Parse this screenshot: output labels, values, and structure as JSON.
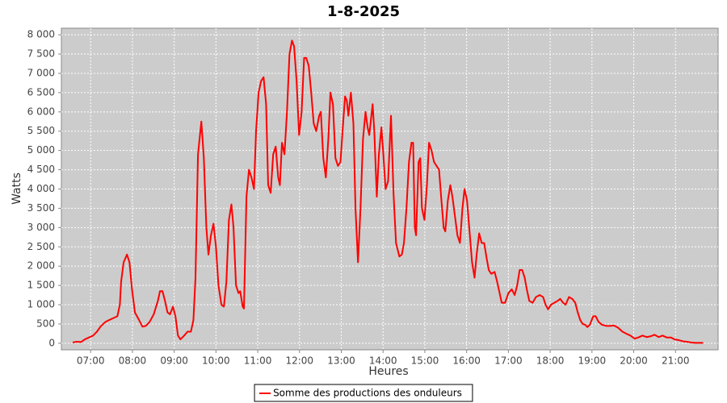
{
  "chart_data": {
    "type": "line",
    "title": "1-8-2025",
    "x_label": "Heures",
    "y_label": "Watts",
    "x": [
      6.57,
      6.67,
      6.77,
      6.86,
      6.96,
      7.06,
      7.15,
      7.25,
      7.35,
      7.44,
      7.54,
      7.64,
      7.7,
      7.73,
      7.79,
      7.87,
      7.93,
      7.99,
      8.06,
      8.16,
      8.24,
      8.32,
      8.41,
      8.51,
      8.61,
      8.66,
      8.72,
      8.78,
      8.84,
      8.9,
      8.97,
      9.03,
      9.09,
      9.15,
      9.24,
      9.32,
      9.4,
      9.46,
      9.51,
      9.57,
      9.65,
      9.71,
      9.77,
      9.82,
      9.88,
      9.94,
      10.0,
      10.06,
      10.13,
      10.19,
      10.25,
      10.31,
      10.37,
      10.42,
      10.48,
      10.54,
      10.58,
      10.64,
      10.67,
      10.73,
      10.79,
      10.85,
      10.91,
      10.96,
      11.02,
      11.08,
      11.14,
      11.2,
      11.25,
      11.31,
      11.37,
      11.43,
      11.49,
      11.53,
      11.58,
      11.64,
      11.7,
      11.76,
      11.82,
      11.87,
      11.93,
      11.99,
      12.05,
      12.11,
      12.16,
      12.22,
      12.28,
      12.34,
      12.4,
      12.47,
      12.51,
      12.57,
      12.63,
      12.69,
      12.74,
      12.8,
      12.86,
      12.92,
      12.98,
      13.03,
      13.09,
      13.13,
      13.17,
      13.23,
      13.29,
      13.34,
      13.4,
      13.46,
      13.52,
      13.58,
      13.63,
      13.67,
      13.75,
      13.79,
      13.85,
      13.9,
      13.96,
      14.0,
      14.06,
      14.12,
      14.19,
      14.25,
      14.31,
      14.39,
      14.45,
      14.5,
      14.56,
      14.62,
      14.68,
      14.72,
      14.76,
      14.79,
      14.85,
      14.89,
      14.93,
      14.99,
      15.05,
      15.1,
      15.16,
      15.22,
      15.28,
      15.34,
      15.39,
      15.45,
      15.49,
      15.55,
      15.61,
      15.66,
      15.72,
      15.78,
      15.84,
      15.9,
      15.95,
      16.01,
      16.07,
      16.13,
      16.19,
      16.24,
      16.3,
      16.36,
      16.42,
      16.48,
      16.53,
      16.59,
      16.67,
      16.73,
      16.79,
      16.84,
      16.92,
      17.0,
      17.08,
      17.15,
      17.21,
      17.27,
      17.33,
      17.39,
      17.44,
      17.5,
      17.58,
      17.66,
      17.75,
      17.83,
      17.89,
      17.95,
      18.02,
      18.1,
      18.18,
      18.24,
      18.31,
      18.37,
      18.45,
      18.53,
      18.6,
      18.66,
      18.72,
      18.78,
      18.84,
      18.89,
      18.95,
      19.03,
      19.09,
      19.16,
      19.24,
      19.34,
      19.43,
      19.53,
      19.63,
      19.73,
      19.82,
      19.92,
      20.02,
      20.11,
      20.21,
      20.31,
      20.4,
      20.5,
      20.6,
      20.69,
      20.79,
      20.89,
      20.98,
      21.08,
      21.18,
      21.27,
      21.37,
      21.47,
      21.66
    ],
    "series": [
      {
        "name": "Somme des productions des onduleurs",
        "color": "#ff0000",
        "values": [
          20,
          40,
          30,
          100,
          150,
          200,
          300,
          450,
          550,
          600,
          650,
          700,
          1000,
          1600,
          2100,
          2300,
          2100,
          1400,
          800,
          600,
          430,
          450,
          550,
          750,
          1100,
          1350,
          1350,
          1100,
          800,
          750,
          950,
          700,
          200,
          100,
          200,
          300,
          300,
          600,
          1700,
          4900,
          5750,
          4800,
          3000,
          2300,
          2800,
          3100,
          2500,
          1500,
          1000,
          950,
          1600,
          3200,
          3600,
          3000,
          1500,
          1300,
          1350,
          950,
          900,
          3800,
          4500,
          4300,
          4000,
          5500,
          6500,
          6800,
          6900,
          6200,
          4100,
          3900,
          4900,
          5100,
          4300,
          4100,
          5200,
          4900,
          6000,
          7500,
          7850,
          7700,
          6800,
          5400,
          6000,
          7400,
          7400,
          7200,
          6500,
          5700,
          5500,
          5900,
          6000,
          4800,
          4300,
          5300,
          6500,
          6200,
          4800,
          4600,
          4700,
          5500,
          6400,
          6300,
          5900,
          6500,
          5700,
          3500,
          2100,
          3500,
          5300,
          6000,
          5600,
          5400,
          6200,
          5500,
          3800,
          4900,
          5600,
          5000,
          4000,
          4200,
          5900,
          3900,
          2600,
          2250,
          2300,
          2600,
          3500,
          4700,
          5200,
          5200,
          3000,
          2800,
          4700,
          4800,
          3500,
          3200,
          4100,
          5200,
          5000,
          4700,
          4600,
          4500,
          3800,
          3000,
          2900,
          3700,
          4100,
          3800,
          3300,
          2800,
          2600,
          3500,
          4000,
          3700,
          2900,
          2100,
          1700,
          2300,
          2850,
          2600,
          2600,
          2200,
          1900,
          1800,
          1850,
          1600,
          1300,
          1050,
          1050,
          1300,
          1400,
          1250,
          1500,
          1900,
          1900,
          1700,
          1400,
          1100,
          1050,
          1200,
          1250,
          1200,
          1000,
          880,
          1000,
          1050,
          1100,
          1150,
          1050,
          1000,
          1200,
          1150,
          1050,
          800,
          600,
          500,
          480,
          420,
          480,
          700,
          700,
          550,
          480,
          450,
          450,
          460,
          400,
          300,
          250,
          200,
          120,
          150,
          200,
          160,
          180,
          220,
          160,
          200,
          150,
          150,
          100,
          80,
          50,
          40,
          20,
          10,
          10
        ]
      }
    ],
    "xlim": [
      6.3,
      22.02
    ],
    "xticks": [
      {
        "value": 7,
        "label": "07:00"
      },
      {
        "value": 8,
        "label": "08:00"
      },
      {
        "value": 9,
        "label": "09:00"
      },
      {
        "value": 10,
        "label": "10:00"
      },
      {
        "value": 11,
        "label": "11:00"
      },
      {
        "value": 12,
        "label": "12:00"
      },
      {
        "value": 13,
        "label": "13:00"
      },
      {
        "value": 14,
        "label": "14:00"
      },
      {
        "value": 15,
        "label": "15:00"
      },
      {
        "value": 16,
        "label": "16:00"
      },
      {
        "value": 17,
        "label": "17:00"
      },
      {
        "value": 18,
        "label": "18:00"
      },
      {
        "value": 19,
        "label": "19:00"
      },
      {
        "value": 20,
        "label": "20:00"
      },
      {
        "value": 21,
        "label": "21:00"
      }
    ],
    "ylim": [
      -170,
      8170
    ],
    "yticks": [
      0,
      500,
      {
        "value": 1000,
        "label": "1 000"
      },
      {
        "value": 1500,
        "label": "1 500"
      },
      {
        "value": 2000,
        "label": "2 000"
      },
      {
        "value": 2500,
        "label": "2 500"
      },
      {
        "value": 3000,
        "label": "3 000"
      },
      {
        "value": 3500,
        "label": "3 500"
      },
      {
        "value": 4000,
        "label": "4 000"
      },
      {
        "value": 4500,
        "label": "4 500"
      },
      {
        "value": 5000,
        "label": "5 000"
      },
      {
        "value": 5500,
        "label": "5 500"
      },
      {
        "value": 6000,
        "label": "6 000"
      },
      {
        "value": 6500,
        "label": "6 500"
      },
      {
        "value": 7000,
        "label": "7 000"
      },
      {
        "value": 7500,
        "label": "7 500"
      },
      {
        "value": 8000,
        "label": "8 000"
      }
    ],
    "grid": true,
    "legend": "bottom"
  }
}
